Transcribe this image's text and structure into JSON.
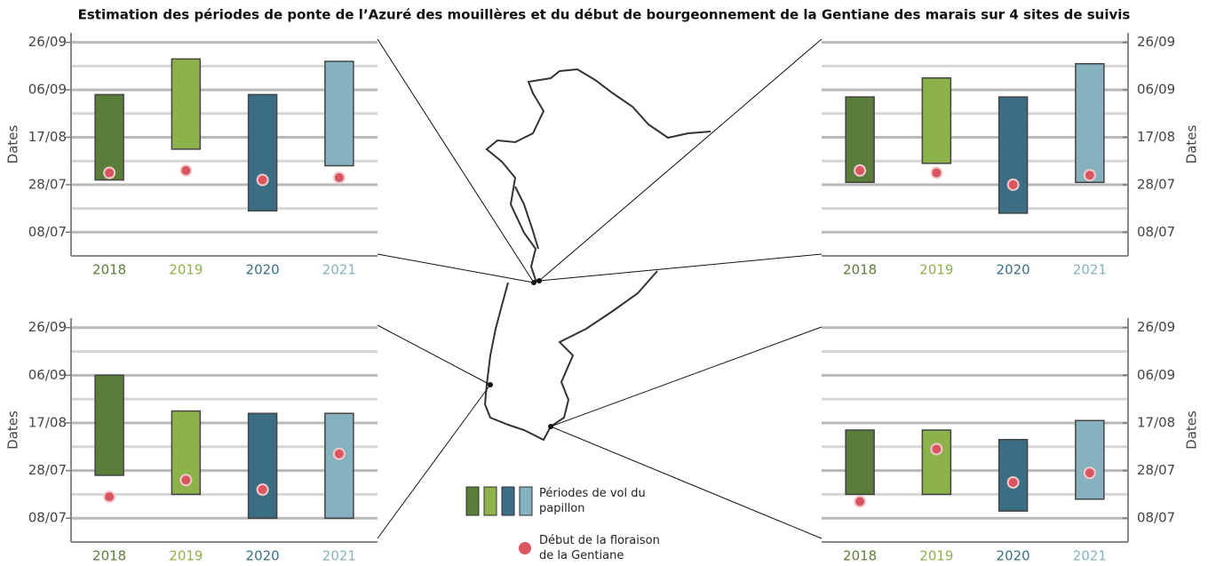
{
  "title": "Estimation des périodes de ponte de l’Azuré des mouillères et du début de bourgeonnement de la Gentiane des marais sur 4 sites de suivis",
  "legend": {
    "bars": "Périodes de vol du papillon",
    "dots": "Début de la floraison de la Gentiane"
  },
  "colors": [
    "#5b7d3a",
    "#8db24a",
    "#3b6e85",
    "#86b1bf"
  ],
  "dot_color": "#d9555f",
  "chart_data": [
    {
      "type": "floating_bar",
      "y_label": "Dates",
      "axis_side": "left",
      "categories": [
        "2018",
        "2019",
        "2020",
        "2021"
      ],
      "start": [
        211,
        224,
        198,
        217
      ],
      "end": [
        247,
        262,
        247,
        261
      ],
      "flowering": [
        214,
        215,
        211,
        212
      ],
      "ylim": [
        179,
        273
      ],
      "yticks": [
        {
          "value": 189,
          "label": "08/07"
        },
        {
          "value": 209,
          "label": "28/07"
        },
        {
          "value": 229,
          "label": "17/08"
        },
        {
          "value": 249,
          "label": "06/09"
        },
        {
          "value": 269,
          "label": "26/09"
        }
      ],
      "minor_grid": [
        199,
        219,
        239,
        259
      ]
    },
    {
      "type": "floating_bar",
      "y_label": "Dates",
      "axis_side": "right",
      "categories": [
        "2018",
        "2019",
        "2020",
        "2021"
      ],
      "start": [
        210,
        218,
        197,
        210
      ],
      "end": [
        246,
        254,
        246,
        260
      ],
      "flowering": [
        215,
        214,
        209,
        213
      ],
      "ylim": [
        179,
        273
      ],
      "yticks": [
        {
          "value": 189,
          "label": "08/07"
        },
        {
          "value": 209,
          "label": "28/07"
        },
        {
          "value": 229,
          "label": "17/08"
        },
        {
          "value": 249,
          "label": "06/09"
        },
        {
          "value": 269,
          "label": "26/09"
        }
      ],
      "minor_grid": [
        199,
        219,
        239,
        259
      ]
    },
    {
      "type": "floating_bar",
      "y_label": "Dates",
      "axis_side": "left",
      "categories": [
        "2018",
        "2019",
        "2020",
        "2021"
      ],
      "start": [
        207,
        199,
        189,
        189
      ],
      "end": [
        249,
        234,
        233,
        233
      ],
      "flowering": [
        198,
        205,
        201,
        216
      ],
      "ylim": [
        179,
        273
      ],
      "yticks": [
        {
          "value": 189,
          "label": "08/07"
        },
        {
          "value": 209,
          "label": "28/07"
        },
        {
          "value": 229,
          "label": "17/08"
        },
        {
          "value": 249,
          "label": "06/09"
        },
        {
          "value": 269,
          "label": "26/09"
        }
      ],
      "minor_grid": [
        199,
        219,
        239,
        259
      ]
    },
    {
      "type": "floating_bar",
      "y_label": "Dates",
      "axis_side": "right",
      "categories": [
        "2018",
        "2019",
        "2020",
        "2021"
      ],
      "start": [
        199,
        199,
        192,
        197
      ],
      "end": [
        226,
        226,
        222,
        230
      ],
      "flowering": [
        196,
        218,
        204,
        208
      ],
      "ylim": [
        179,
        273
      ],
      "yticks": [
        {
          "value": 189,
          "label": "08/07"
        },
        {
          "value": 209,
          "label": "28/07"
        },
        {
          "value": 229,
          "label": "17/08"
        },
        {
          "value": 249,
          "label": "06/09"
        },
        {
          "value": 269,
          "label": "26/09"
        }
      ],
      "minor_grid": [
        199,
        219,
        239,
        259
      ]
    }
  ]
}
